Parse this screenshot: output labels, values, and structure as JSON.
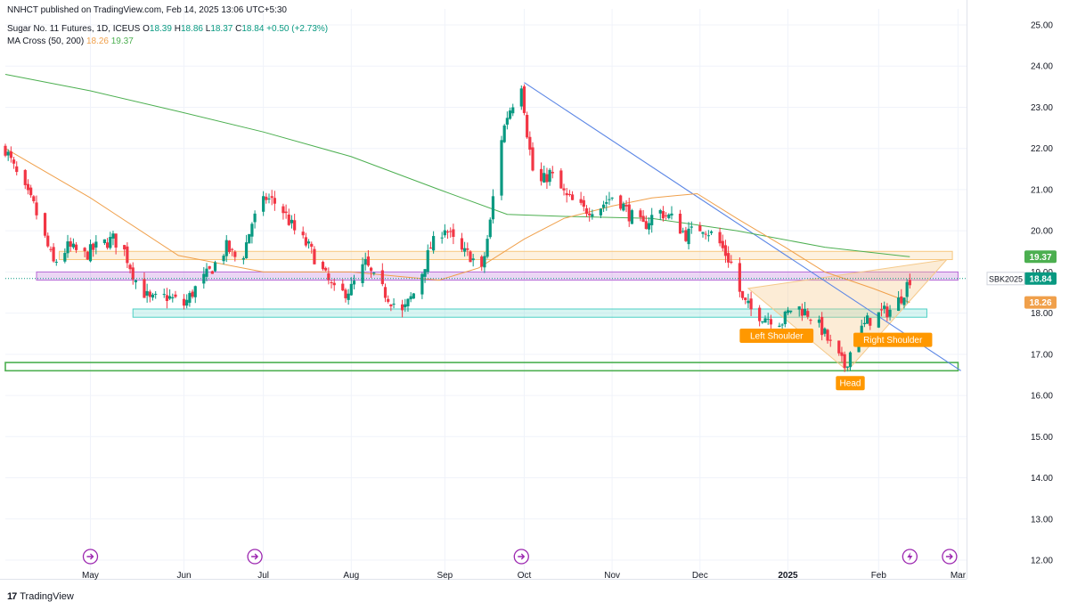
{
  "header": {
    "published": "NNHCT published on TradingView.com, Feb 14, 2025 13:06 UTC+5:30",
    "symbol": "Sugar No. 11 Futures, 1D, ICEUS",
    "ohlc": {
      "o_label": "O",
      "o": "18.39",
      "h_label": "H",
      "h": "18.86",
      "l_label": "L",
      "l": "18.37",
      "c_label": "C",
      "c": "18.84",
      "change": "+0.50 (+2.73%)"
    },
    "indicator": {
      "name": "MA Cross (50, 200)",
      "ma50": "18.26",
      "ma200": "19.37"
    }
  },
  "footer": {
    "brand": "TradingView",
    "logo_icon": "tradingview-logo-icon"
  },
  "colors": {
    "up": "#089981",
    "down": "#f23645",
    "ma50": "#f0a04b",
    "ma200": "#4caf50",
    "trendline": "#5b86e5",
    "zone_orange": "#f7c77e",
    "zone_purple": "#b86bd6",
    "zone_teal": "#4dd0c4",
    "zone_green": "#4caf50",
    "pattern": "#f5c98a"
  },
  "chart_data": {
    "type": "candlestick",
    "y_axis": {
      "min": 12,
      "max": 25,
      "ticks": [
        "12.00",
        "13.00",
        "14.00",
        "15.00",
        "16.00",
        "17.00",
        "18.00",
        "19.00",
        "20.00",
        "21.00",
        "22.00",
        "23.00",
        "24.00",
        "25.00"
      ],
      "position": "right"
    },
    "x_axis": {
      "start": "2024-04-01",
      "end": "2025-03-06",
      "labels": [
        {
          "label": "May",
          "date": "2024-05-01"
        },
        {
          "label": "Jun",
          "date": "2024-06-03"
        },
        {
          "label": "Jul",
          "date": "2024-07-01"
        },
        {
          "label": "Aug",
          "date": "2024-08-01"
        },
        {
          "label": "Sep",
          "date": "2024-09-03"
        },
        {
          "label": "Oct",
          "date": "2024-10-01"
        },
        {
          "label": "Nov",
          "date": "2024-11-01"
        },
        {
          "label": "Dec",
          "date": "2024-12-02"
        },
        {
          "label": "2025",
          "date": "2025-01-02"
        },
        {
          "label": "Feb",
          "date": "2025-02-03"
        },
        {
          "label": "Mar",
          "date": "2025-03-03"
        }
      ]
    },
    "price_path": [
      [
        "2024-04-01",
        22.0
      ],
      [
        "2024-04-06",
        21.2
      ],
      [
        "2024-04-11",
        20.6
      ],
      [
        "2024-04-15",
        19.8
      ],
      [
        "2024-04-18",
        19.2
      ],
      [
        "2024-04-23",
        19.6
      ],
      [
        "2024-04-29",
        19.4
      ],
      [
        "2024-05-03",
        19.6
      ],
      [
        "2024-05-09",
        19.8
      ],
      [
        "2024-05-13",
        19.5
      ],
      [
        "2024-05-17",
        18.8
      ],
      [
        "2024-05-22",
        18.3
      ],
      [
        "2024-05-28",
        18.4
      ],
      [
        "2024-06-03",
        18.2
      ],
      [
        "2024-06-07",
        18.6
      ],
      [
        "2024-06-12",
        19.0
      ],
      [
        "2024-06-18",
        19.6
      ],
      [
        "2024-06-23",
        19.2
      ],
      [
        "2024-06-27",
        20.2
      ],
      [
        "2024-07-02",
        20.8
      ],
      [
        "2024-07-07",
        20.6
      ],
      [
        "2024-07-12",
        20.0
      ],
      [
        "2024-07-17",
        19.6
      ],
      [
        "2024-07-22",
        19.0
      ],
      [
        "2024-07-27",
        18.4
      ],
      [
        "2024-08-01",
        18.6
      ],
      [
        "2024-08-06",
        19.2
      ],
      [
        "2024-08-10",
        18.7
      ],
      [
        "2024-08-14",
        18.4
      ],
      [
        "2024-08-19",
        18.0
      ],
      [
        "2024-08-24",
        18.6
      ],
      [
        "2024-08-29",
        19.6
      ],
      [
        "2024-09-03",
        20.1
      ],
      [
        "2024-09-08",
        19.5
      ],
      [
        "2024-09-12",
        19.4
      ],
      [
        "2024-09-16",
        19.0
      ],
      [
        "2024-09-19",
        20.2
      ],
      [
        "2024-09-22",
        22.0
      ],
      [
        "2024-09-25",
        22.8
      ],
      [
        "2024-09-30",
        23.6
      ],
      [
        "2024-10-02",
        22.4
      ],
      [
        "2024-10-05",
        21.0
      ],
      [
        "2024-10-10",
        21.4
      ],
      [
        "2024-10-16",
        20.8
      ],
      [
        "2024-10-22",
        20.5
      ],
      [
        "2024-10-28",
        20.6
      ],
      [
        "2024-11-02",
        20.9
      ],
      [
        "2024-11-07",
        20.4
      ],
      [
        "2024-11-12",
        20.1
      ],
      [
        "2024-11-17",
        20.5
      ],
      [
        "2024-11-22",
        20.3
      ],
      [
        "2024-11-27",
        19.9
      ],
      [
        "2024-12-03",
        20.1
      ],
      [
        "2024-12-08",
        19.8
      ],
      [
        "2024-12-13",
        19.2
      ],
      [
        "2024-12-17",
        18.3
      ],
      [
        "2024-12-21",
        18.0
      ],
      [
        "2024-12-26",
        17.9
      ],
      [
        "2024-12-31",
        17.8
      ],
      [
        "2025-01-04",
        18.2
      ],
      [
        "2025-01-09",
        18.0
      ],
      [
        "2025-01-14",
        17.6
      ],
      [
        "2025-01-18",
        17.1
      ],
      [
        "2025-01-22",
        16.7
      ],
      [
        "2025-01-26",
        17.4
      ],
      [
        "2025-01-30",
        17.8
      ],
      [
        "2025-02-04",
        18.0
      ],
      [
        "2025-02-08",
        18.1
      ],
      [
        "2025-02-11",
        18.4
      ],
      [
        "2025-02-14",
        18.84
      ]
    ],
    "ma50": [
      [
        "2024-04-01",
        22.0
      ],
      [
        "2024-05-01",
        20.8
      ],
      [
        "2024-06-01",
        19.4
      ],
      [
        "2024-07-01",
        19.0
      ],
      [
        "2024-08-01",
        19.0
      ],
      [
        "2024-09-01",
        18.8
      ],
      [
        "2024-09-15",
        19.1
      ],
      [
        "2024-10-01",
        19.8
      ],
      [
        "2024-10-15",
        20.3
      ],
      [
        "2024-11-01",
        20.6
      ],
      [
        "2024-11-15",
        20.8
      ],
      [
        "2024-12-01",
        20.9
      ],
      [
        "2024-12-15",
        20.3
      ],
      [
        "2025-01-01",
        19.6
      ],
      [
        "2025-01-15",
        19.0
      ],
      [
        "2025-02-01",
        18.6
      ],
      [
        "2025-02-14",
        18.26
      ]
    ],
    "ma200": [
      [
        "2024-04-01",
        23.8
      ],
      [
        "2024-05-01",
        23.4
      ],
      [
        "2024-06-01",
        22.9
      ],
      [
        "2024-07-01",
        22.4
      ],
      [
        "2024-08-01",
        21.8
      ],
      [
        "2024-09-01",
        21.0
      ],
      [
        "2024-09-25",
        20.4
      ],
      [
        "2024-10-15",
        20.35
      ],
      [
        "2024-11-15",
        20.3
      ],
      [
        "2024-12-15",
        20.0
      ],
      [
        "2025-01-15",
        19.6
      ],
      [
        "2025-02-14",
        19.37
      ]
    ],
    "zones": [
      {
        "name": "orange",
        "from": "2024-04-20",
        "to": "2025-03-01",
        "low": 19.3,
        "high": 19.5
      },
      {
        "name": "purple",
        "from": "2024-04-12",
        "to": "2025-03-03",
        "low": 18.8,
        "high": 19.0
      },
      {
        "name": "teal",
        "from": "2024-05-16",
        "to": "2025-02-20",
        "low": 17.9,
        "high": 18.1
      },
      {
        "name": "green",
        "from": "2024-04-01",
        "to": "2025-03-03",
        "low": 16.6,
        "high": 16.8
      }
    ],
    "trendline": {
      "from": [
        "2024-10-01",
        23.6
      ],
      "to": [
        "2025-03-04",
        16.6
      ]
    },
    "pattern_lines": [
      [
        [
          "2024-12-19",
          18.6
        ],
        [
          "2025-01-23",
          16.6
        ],
        [
          "2025-02-27",
          19.3
        ]
      ]
    ],
    "annotations": [
      {
        "text": "Left Shoulder",
        "date": "2024-12-29",
        "price": 17.45
      },
      {
        "text": "Head",
        "date": "2025-01-24",
        "price": 16.3
      },
      {
        "text": "Right Shoulder",
        "date": "2025-02-08",
        "price": 17.35
      }
    ],
    "price_labels": [
      {
        "text": "19.37",
        "price": 19.37,
        "color": "#4caf50"
      },
      {
        "text": "18.84",
        "price": 18.84,
        "color": "#089981",
        "symbol": "SBK2025"
      },
      {
        "text": "18.26",
        "price": 18.26,
        "color": "#f0a04b"
      }
    ],
    "event_markers": [
      {
        "date": "2024-05-01",
        "icon": "dividend-arrow-icon"
      },
      {
        "date": "2024-06-28",
        "icon": "dividend-arrow-icon"
      },
      {
        "date": "2024-09-30",
        "icon": "dividend-arrow-icon"
      },
      {
        "date": "2025-02-14",
        "icon": "lightning-icon"
      },
      {
        "date": "2025-02-28",
        "icon": "dividend-arrow-icon"
      }
    ]
  }
}
